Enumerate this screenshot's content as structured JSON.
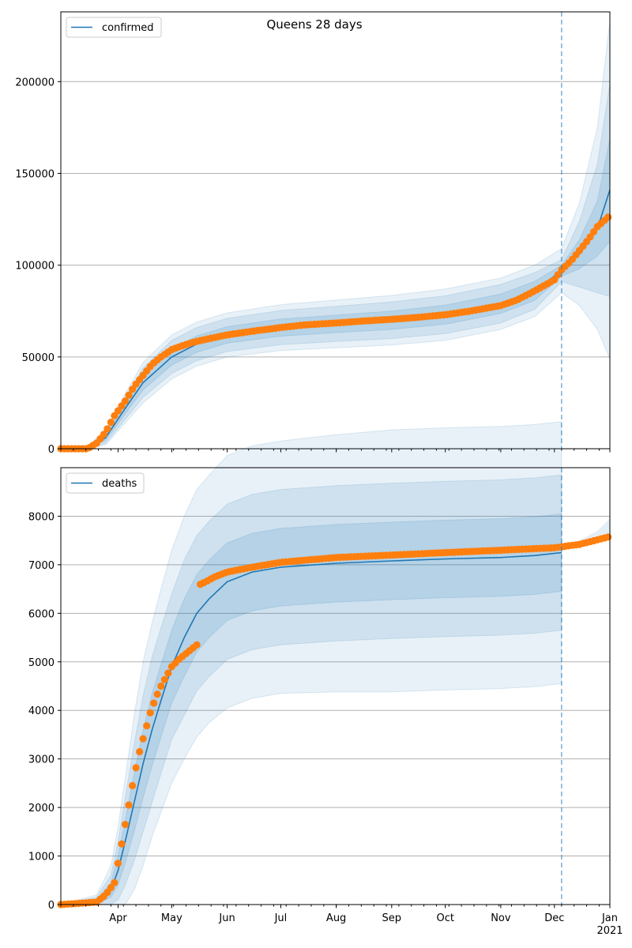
{
  "title": "Queens 28 days",
  "colors": {
    "model": "#1f77b4",
    "observed": "#ff7f0e",
    "band": "#1f77b4",
    "grid": "#b0b0b0",
    "forecast_line": "#1f77b4"
  },
  "x_axis": {
    "start": "2020-02-29",
    "end": "2021-01-01",
    "forecast_start": "2020-12-05",
    "month_ticks": [
      {
        "date": "2020-04-01",
        "label": "Apr",
        "sub": ""
      },
      {
        "date": "2020-05-01",
        "label": "May",
        "sub": ""
      },
      {
        "date": "2020-06-01",
        "label": "Jun",
        "sub": ""
      },
      {
        "date": "2020-07-01",
        "label": "Jul",
        "sub": ""
      },
      {
        "date": "2020-08-01",
        "label": "Aug",
        "sub": ""
      },
      {
        "date": "2020-09-01",
        "label": "Sep",
        "sub": ""
      },
      {
        "date": "2020-10-01",
        "label": "Oct",
        "sub": ""
      },
      {
        "date": "2020-11-01",
        "label": "Nov",
        "sub": ""
      },
      {
        "date": "2020-12-01",
        "label": "Dec",
        "sub": ""
      },
      {
        "date": "2021-01-01",
        "label": "Jan",
        "sub": "2021"
      }
    ]
  },
  "chart_data": [
    {
      "type": "line",
      "legend": "confirmed",
      "legend_position": "top-left",
      "grid": "horizontal",
      "ylim": [
        0,
        238000
      ],
      "yticks": [
        0,
        50000,
        100000,
        150000,
        200000
      ],
      "series": [
        {
          "name": "confirmed",
          "kind": "model",
          "x": [
            "2020-02-29",
            "2020-03-15",
            "2020-03-25",
            "2020-04-05",
            "2020-04-15",
            "2020-05-01",
            "2020-05-15",
            "2020-06-01",
            "2020-07-01",
            "2020-08-01",
            "2020-09-01",
            "2020-10-01",
            "2020-11-01",
            "2020-11-20",
            "2020-12-05",
            "2020-12-15",
            "2020-12-25",
            "2021-01-01"
          ],
          "y": [
            0,
            500,
            6000,
            22000,
            36000,
            50000,
            57000,
            62000,
            66000,
            68000,
            70000,
            73000,
            79000,
            86000,
            97000,
            106000,
            120000,
            141000
          ]
        },
        {
          "kind": "observed",
          "x": [
            "2020-02-29",
            "2020-03-15",
            "2020-03-20",
            "2020-03-25",
            "2020-03-30",
            "2020-04-05",
            "2020-04-10",
            "2020-04-15",
            "2020-04-20",
            "2020-04-25",
            "2020-05-01",
            "2020-05-08",
            "2020-05-15",
            "2020-05-22",
            "2020-06-01",
            "2020-06-15",
            "2020-07-01",
            "2020-07-15",
            "2020-08-01",
            "2020-08-15",
            "2020-09-01",
            "2020-09-15",
            "2020-10-01",
            "2020-10-15",
            "2020-11-01",
            "2020-11-10",
            "2020-11-20",
            "2020-12-01",
            "2020-12-05",
            "2020-12-10",
            "2020-12-15",
            "2020-12-20",
            "2020-12-25",
            "2021-01-01"
          ],
          "y": [
            0,
            0,
            3000,
            9000,
            18000,
            26000,
            34000,
            40000,
            46000,
            50000,
            54000,
            56500,
            58500,
            60000,
            62000,
            64000,
            66000,
            67500,
            68500,
            69500,
            70500,
            71500,
            73000,
            75000,
            78000,
            81000,
            86000,
            92000,
            97500,
            102000,
            108000,
            114000,
            121000,
            127000
          ]
        }
      ],
      "bands": {
        "x": [
          "2020-02-29",
          "2020-03-15",
          "2020-03-25",
          "2020-04-05",
          "2020-04-15",
          "2020-05-01",
          "2020-05-15",
          "2020-06-01",
          "2020-07-01",
          "2020-08-01",
          "2020-09-01",
          "2020-10-01",
          "2020-11-01",
          "2020-11-20",
          "2020-12-05",
          "2020-12-15",
          "2020-12-25",
          "2021-01-01"
        ],
        "median": [
          0,
          500,
          6000,
          22000,
          36000,
          50000,
          57000,
          62000,
          66000,
          68000,
          70000,
          73000,
          79000,
          86000,
          97000,
          106000,
          120000,
          141000
        ],
        "pad_outer": [
          0,
          1200,
          4000,
          8000,
          11000,
          12000,
          12000,
          12000,
          12500,
          13000,
          13500,
          14000,
          14000,
          14000,
          12000,
          28000,
          55000,
          92000
        ],
        "pad_mid": [
          0,
          900,
          3000,
          6000,
          8000,
          9000,
          9000,
          9000,
          9300,
          9600,
          10000,
          10300,
          10500,
          10000,
          6000,
          18000,
          35000,
          58000
        ],
        "pad_inner": [
          0,
          500,
          1500,
          3000,
          4000,
          4500,
          4500,
          4500,
          4700,
          4800,
          5000,
          5200,
          5300,
          5200,
          3000,
          8000,
          15000,
          28000
        ]
      }
    },
    {
      "type": "line",
      "legend": "deaths",
      "legend_position": "top-left",
      "grid": "horizontal",
      "ylim": [
        0,
        9000
      ],
      "yticks": [
        0,
        1000,
        2000,
        3000,
        4000,
        5000,
        6000,
        7000,
        8000
      ],
      "series": [
        {
          "name": "deaths",
          "kind": "model",
          "x": [
            "2020-02-29",
            "2020-03-20",
            "2020-03-28",
            "2020-04-01",
            "2020-04-05",
            "2020-04-10",
            "2020-04-15",
            "2020-04-20",
            "2020-04-25",
            "2020-05-01",
            "2020-05-08",
            "2020-05-15",
            "2020-05-22",
            "2020-06-01",
            "2020-06-15",
            "2020-07-01",
            "2020-08-01",
            "2020-09-01",
            "2020-10-01",
            "2020-11-01",
            "2020-11-20",
            "2020-12-05"
          ],
          "y": [
            0,
            50,
            300,
            700,
            1300,
            2100,
            2900,
            3600,
            4200,
            4900,
            5500,
            6000,
            6300,
            6650,
            6850,
            6950,
            7030,
            7080,
            7120,
            7150,
            7190,
            7250
          ]
        },
        {
          "kind": "observed",
          "x": [
            "2020-02-29",
            "2020-03-20",
            "2020-03-25",
            "2020-03-30",
            "2020-04-01",
            "2020-04-04",
            "2020-04-07",
            "2020-04-10",
            "2020-04-13",
            "2020-04-16",
            "2020-04-19",
            "2020-04-22",
            "2020-04-25",
            "2020-04-28",
            "2020-05-01",
            "2020-05-05",
            "2020-05-10",
            "2020-05-15",
            "2020-05-16",
            "2020-05-20",
            "2020-05-25",
            "2020-06-01",
            "2020-06-15",
            "2020-07-01",
            "2020-08-01",
            "2020-09-01",
            "2020-10-01",
            "2020-11-01",
            "2020-12-01",
            "2020-12-15",
            "2021-01-01"
          ],
          "y": [
            0,
            50,
            200,
            450,
            850,
            1450,
            2050,
            2650,
            3150,
            3550,
            3950,
            4250,
            4500,
            4700,
            4900,
            5050,
            5200,
            5350,
            6580,
            6650,
            6750,
            6850,
            6950,
            7050,
            7150,
            7200,
            7250,
            7300,
            7350,
            7420,
            7580
          ]
        }
      ],
      "bands": {
        "x": [
          "2020-02-29",
          "2020-03-20",
          "2020-03-28",
          "2020-04-01",
          "2020-04-05",
          "2020-04-10",
          "2020-04-15",
          "2020-04-20",
          "2020-04-25",
          "2020-05-01",
          "2020-05-08",
          "2020-05-15",
          "2020-05-22",
          "2020-06-01",
          "2020-06-15",
          "2020-07-01",
          "2020-08-01",
          "2020-09-01",
          "2020-10-01",
          "2020-11-01",
          "2020-11-20",
          "2020-12-05"
        ],
        "median": [
          0,
          50,
          300,
          700,
          1300,
          2100,
          2900,
          3600,
          4200,
          4900,
          5500,
          6000,
          6300,
          6650,
          6850,
          6950,
          7030,
          7080,
          7120,
          7150,
          7190,
          7250
        ],
        "pad_outer": [
          0,
          150,
          500,
          900,
          1300,
          1800,
          2100,
          2200,
          2300,
          2400,
          2500,
          2550,
          2550,
          2600,
          2600,
          2600,
          2650,
          2700,
          2700,
          2700,
          2700,
          2700
        ],
        "pad_mid": [
          0,
          100,
          300,
          600,
          900,
          1200,
          1400,
          1500,
          1500,
          1500,
          1600,
          1600,
          1600,
          1600,
          1600,
          1600,
          1600,
          1600,
          1600,
          1600,
          1600,
          1600
        ],
        "pad_inner": [
          0,
          50,
          150,
          300,
          450,
          600,
          700,
          750,
          750,
          750,
          800,
          800,
          800,
          800,
          800,
          800,
          800,
          800,
          800,
          800,
          800,
          800
        ]
      },
      "observed_after": {
        "x": [
          "2020-12-05",
          "2020-12-15",
          "2020-12-25",
          "2021-01-01"
        ],
        "outer_lo": [
          7400,
          7400,
          7450,
          7550
        ],
        "outer_hi": [
          7400,
          7500,
          7700,
          7950
        ]
      }
    }
  ]
}
